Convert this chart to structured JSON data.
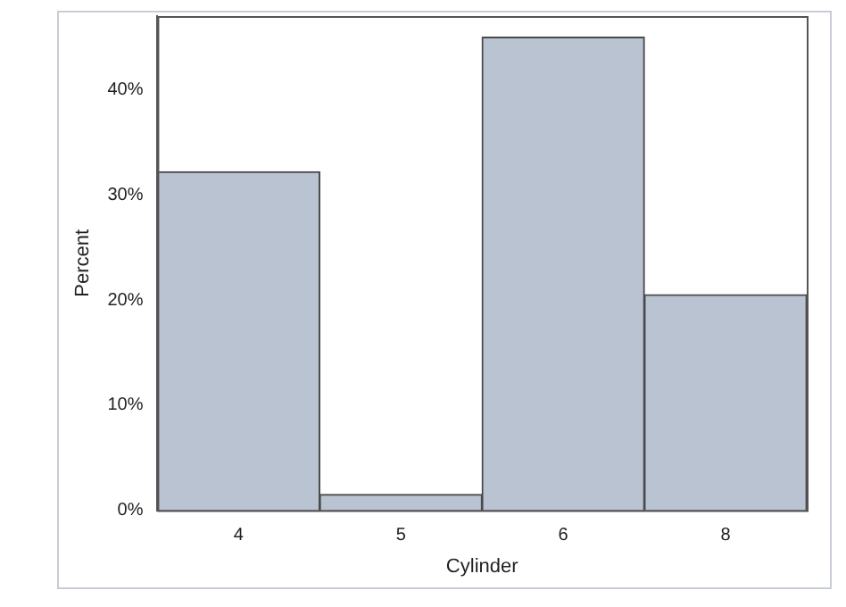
{
  "chart_data": {
    "type": "bar",
    "xlabel": "Cylinder",
    "ylabel": "Percent",
    "categories": [
      "4",
      "5",
      "6",
      "8"
    ],
    "values": [
      32.2,
      1.5,
      45.0,
      20.5
    ],
    "color": "#b9c3d1",
    "ylim": [
      0,
      47
    ],
    "yticks": [
      {
        "value": 0,
        "label": "0%"
      },
      {
        "value": 10,
        "label": "10%"
      },
      {
        "value": 20,
        "label": "20%"
      },
      {
        "value": 30,
        "label": "30%"
      },
      {
        "value": 40,
        "label": "40%"
      }
    ],
    "grid": false,
    "legend": false
  }
}
